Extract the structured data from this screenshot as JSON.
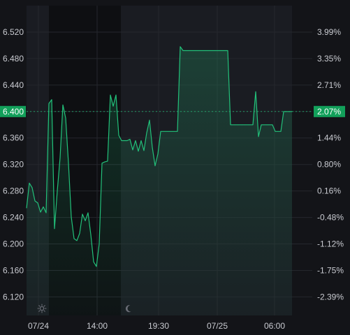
{
  "chart_data": {
    "type": "area",
    "title": "",
    "xlabel": "",
    "ylabel": "",
    "ylim": [
      6.092,
      6.56
    ],
    "grid": true,
    "y_ticks": [
      "6.520",
      "6.480",
      "6.440",
      "6.400",
      "6.360",
      "6.320",
      "6.280",
      "6.240",
      "6.200",
      "6.160",
      "6.120"
    ],
    "y_ticks_right": [
      "3.99%",
      "3.35%",
      "2.71%",
      "2.07%",
      "1.44%",
      "0.80%",
      "0.16%",
      "-0.48%",
      "-1.12%",
      "-1.75%",
      "-2.39%"
    ],
    "x_ticks": [
      "07/24",
      "14:00",
      "19:30",
      "07/25",
      "06:00"
    ],
    "current": {
      "price": "6.400",
      "change": "2.07%"
    },
    "session_icons": [
      "sun-icon",
      "moon-icon"
    ],
    "series": [
      {
        "values": [
          6.254,
          6.292,
          6.285,
          6.265,
          6.262,
          6.248,
          6.256,
          6.247,
          6.412,
          6.418,
          6.223,
          6.28,
          6.33,
          6.41,
          6.39,
          6.322,
          6.241,
          6.208,
          6.205,
          6.216,
          6.245,
          6.235,
          6.247,
          6.214,
          6.173,
          6.166,
          6.2,
          6.322,
          6.324,
          6.325,
          6.425,
          6.408,
          6.425,
          6.364,
          6.356,
          6.356,
          6.356,
          6.358,
          6.342,
          6.356,
          6.34,
          6.356,
          6.341,
          6.368,
          6.387,
          6.346,
          6.318,
          6.336,
          6.37,
          6.37,
          6.37,
          6.37,
          6.37,
          6.37,
          6.37,
          6.498,
          6.492,
          6.492,
          6.492,
          6.492,
          6.492,
          6.492,
          6.492,
          6.492,
          6.492,
          6.492,
          6.492,
          6.492,
          6.492,
          6.492,
          6.492,
          6.492,
          6.492,
          6.38,
          6.38,
          6.38,
          6.38,
          6.38,
          6.38,
          6.38,
          6.38,
          6.38,
          6.43,
          6.362,
          6.38,
          6.38,
          6.38,
          6.38,
          6.38,
          6.37,
          6.37,
          6.37,
          6.4,
          6.4,
          6.4,
          6.4
        ]
      }
    ],
    "colors": {
      "line": "#22c17a",
      "badge": "#12a05a",
      "grid": "#25272d",
      "background": "#131418",
      "session_shade": "#1a1c22",
      "band": "#0e0f12"
    }
  }
}
